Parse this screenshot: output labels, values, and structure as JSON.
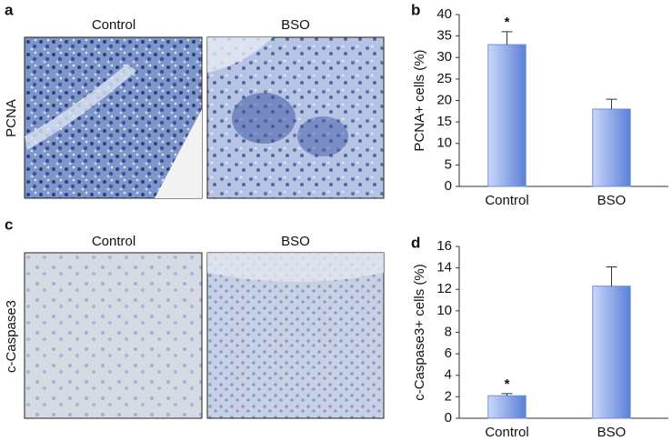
{
  "image_panels": [
    {
      "label": "a",
      "row_label": "PCNA",
      "columns": [
        "Control",
        "BSO"
      ]
    },
    {
      "label": "c",
      "row_label": "c-Caspase3",
      "columns": [
        "Control",
        "BSO"
      ]
    }
  ],
  "chart_data": [
    {
      "type": "bar",
      "panel_label": "b",
      "y_label": "PCNA+ cells (%)",
      "categories": [
        "Control",
        "BSO"
      ],
      "values": [
        33,
        18
      ],
      "errors": [
        3,
        2.3
      ],
      "color": "#6d8fdc",
      "ylim": [
        0,
        40
      ],
      "yticks": [
        0,
        5,
        10,
        15,
        20,
        25,
        30,
        35,
        40
      ],
      "annotations": [
        {
          "text": "*",
          "x": "Control"
        }
      ]
    },
    {
      "type": "bar",
      "panel_label": "d",
      "y_label": "c-Caspase3+ cells (%)",
      "categories": [
        "Control",
        "BSO"
      ],
      "values": [
        2.1,
        12.3
      ],
      "errors": [
        0.2,
        1.8
      ],
      "color": "#6d8fdc",
      "ylim": [
        0,
        16
      ],
      "yticks": [
        0,
        2,
        4,
        6,
        8,
        10,
        12,
        14,
        16
      ],
      "annotations": [
        {
          "text": "*",
          "x": "Control"
        }
      ]
    }
  ]
}
